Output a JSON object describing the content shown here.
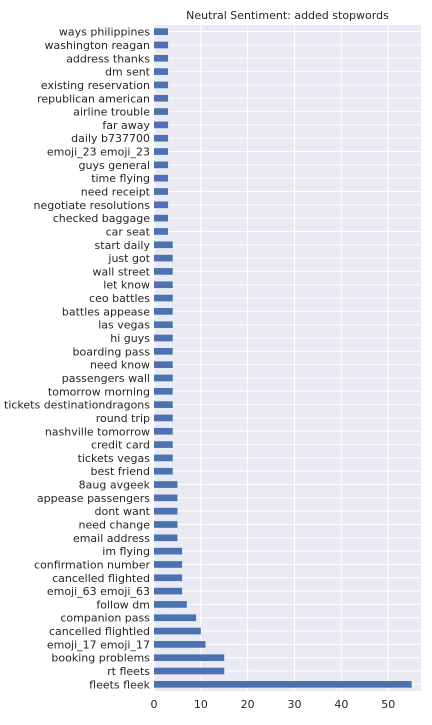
{
  "chart_data": {
    "type": "bar",
    "orientation": "horizontal",
    "title": "Neutral Sentiment: added stopwords",
    "xlabel": "",
    "ylabel": "",
    "xlim": [
      0,
      57
    ],
    "xticks": [
      0,
      10,
      20,
      30,
      40,
      50
    ],
    "grid": true,
    "legend": "none",
    "bar_color": "#4c72b0",
    "background_color": "#eaeaf2",
    "categories": [
      "ways philippines",
      "washington reagan",
      "address thanks",
      "dm sent",
      "existing reservation",
      "republican american",
      "airline trouble",
      "far away",
      "daily b737700",
      "emoji_23 emoji_23",
      "guys general",
      "time flying",
      "need receipt",
      "negotiate resolutions",
      "checked baggage",
      "car seat",
      "start daily",
      "just got",
      "wall street",
      "let know",
      "ceo battles",
      "battles appease",
      "las vegas",
      "hi guys",
      "boarding pass",
      "need know",
      "passengers wall",
      "tomorrow morning",
      "tickets destinationdragons",
      "round trip",
      "nashville tomorrow",
      "credit card",
      "tickets vegas",
      "best friend",
      "8aug avgeek",
      "appease passengers",
      "dont want",
      "need change",
      "email address",
      "im flying",
      "confirmation number",
      "cancelled flighted",
      "emoji_63 emoji_63",
      "follow dm",
      "companion pass",
      "cancelled flightled",
      "emoji_17 emoji_17",
      "booking problems",
      "rt fleets",
      "fleets fleek"
    ],
    "values": [
      3,
      3,
      3,
      3,
      3,
      3,
      3,
      3,
      3,
      3,
      3,
      3,
      3,
      3,
      3,
      3,
      4,
      4,
      4,
      4,
      4,
      4,
      4,
      4,
      4,
      4,
      4,
      4,
      4,
      4,
      4,
      4,
      4,
      4,
      5,
      5,
      5,
      5,
      5,
      6,
      6,
      6,
      6,
      7,
      9,
      10,
      11,
      15,
      15,
      55
    ]
  }
}
